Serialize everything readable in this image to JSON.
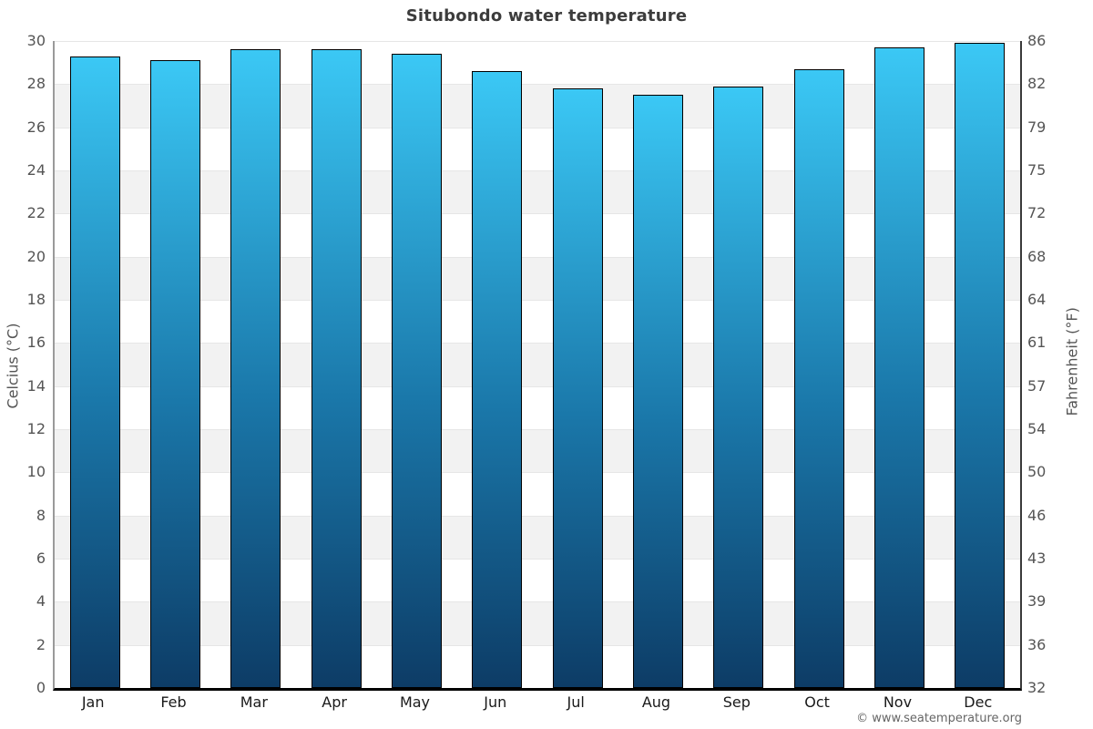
{
  "chart_data": {
    "type": "bar",
    "title": "Situbondo water temperature",
    "categories": [
      "Jan",
      "Feb",
      "Mar",
      "Apr",
      "May",
      "Jun",
      "Jul",
      "Aug",
      "Sep",
      "Oct",
      "Nov",
      "Dec"
    ],
    "values": [
      29.3,
      29.1,
      29.6,
      29.6,
      29.4,
      28.6,
      27.8,
      27.5,
      27.9,
      28.7,
      29.7,
      29.9
    ],
    "ylabel_left": "Celcius (°C)",
    "ylabel_right": "Fahrenheit (°F)",
    "ylim": [
      0,
      30
    ],
    "yticks_celsius": [
      30,
      28,
      26,
      24,
      22,
      20,
      18,
      16,
      14,
      12,
      10,
      8,
      6,
      4,
      2,
      0
    ],
    "yticks_fahrenheit": [
      86,
      82,
      79,
      75,
      72,
      68,
      64,
      61,
      57,
      54,
      50,
      46,
      43,
      39,
      36,
      32
    ],
    "grid": "horizontal bands every 2°C, alternating white and light gray",
    "legend": "none",
    "colors": {
      "bar_gradient_top": "#3bc8f5",
      "bar_gradient_bottom": "#0d3c66",
      "bar_border": "#000000",
      "band_gray": "#f2f2f2",
      "tick_text": "#555555",
      "title_text": "#3c3c3c"
    }
  },
  "footer": {
    "copyright": "© www.seatemperature.org"
  }
}
